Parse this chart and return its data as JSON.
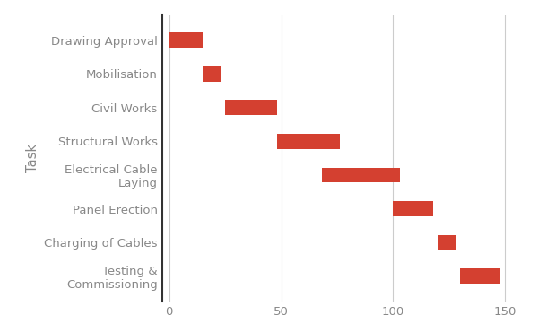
{
  "tasks": [
    "Drawing Approval",
    "Mobilisation",
    "Civil Works",
    "Structural Works",
    "Electrical Cable\nLaying",
    "Panel Erection",
    "Charging of Cables",
    "Testing &\nCommissioning"
  ],
  "starts": [
    0,
    15,
    25,
    48,
    68,
    100,
    120,
    130
  ],
  "durations": [
    15,
    8,
    23,
    28,
    35,
    18,
    8,
    18
  ],
  "bar_color": "#d44030",
  "bar_height": 0.45,
  "xlim": [
    -3,
    158
  ],
  "xticks": [
    0,
    50,
    100,
    150
  ],
  "ylabel": "Task",
  "bg_color": "#ffffff",
  "grid_color": "#cccccc",
  "text_color": "#888888",
  "tick_fontsize": 9.5,
  "label_fontsize": 10.5,
  "spine_color": "#333333"
}
